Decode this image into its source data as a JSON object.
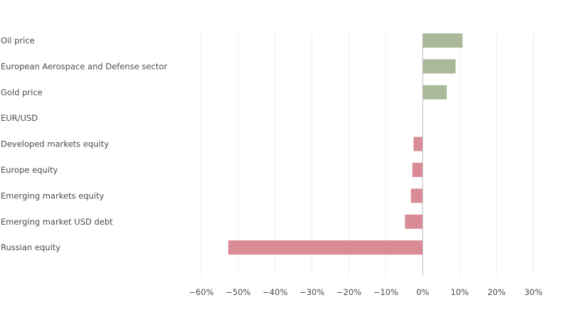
{
  "chart_data": {
    "type": "bar",
    "orientation": "horizontal",
    "categories": [
      "Oil price",
      "European Aerospace and Defense sector",
      "Gold price",
      "EUR/USD",
      "Developed markets equity",
      "Europe equity",
      "Emerging markets equity",
      "Emerging market USD debt",
      "Russian equity"
    ],
    "values": [
      10.8,
      8.9,
      6.5,
      0.0,
      -2.5,
      -2.8,
      -3.2,
      -4.8,
      -52.7
    ],
    "xlim": [
      -60,
      30
    ],
    "x_ticks": [
      -60,
      -50,
      -40,
      -30,
      -20,
      -10,
      0,
      10,
      20,
      30
    ],
    "x_tick_labels": [
      "−60%",
      "−50%",
      "−40%",
      "−30%",
      "−20%",
      "−10%",
      "0%",
      "10%",
      "20%",
      "30%"
    ],
    "title": "",
    "xlabel": "",
    "ylabel": "",
    "grid": "vertical",
    "colors": {
      "positive": "#a9b99a",
      "negative": "#d98b96",
      "grid": "#ececec",
      "zero_line": "#bdbdbd"
    }
  }
}
